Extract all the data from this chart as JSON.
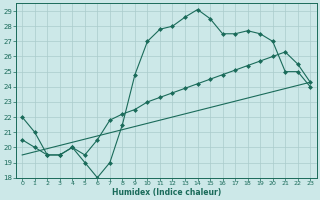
{
  "xlabel": "Humidex (Indice chaleur)",
  "bg_color": "#cce8e8",
  "grid_color": "#aacccc",
  "line_color": "#1a6b5a",
  "xlim": [
    -0.5,
    23.5
  ],
  "ylim": [
    18,
    29.5
  ],
  "yticks": [
    18,
    19,
    20,
    21,
    22,
    23,
    24,
    25,
    26,
    27,
    28,
    29
  ],
  "xticks": [
    0,
    1,
    2,
    3,
    4,
    5,
    6,
    7,
    8,
    9,
    10,
    11,
    12,
    13,
    14,
    15,
    16,
    17,
    18,
    19,
    20,
    21,
    22,
    23
  ],
  "line1_x": [
    0,
    1,
    2,
    3,
    4,
    5,
    6,
    7,
    8,
    9,
    10,
    11,
    12,
    13,
    14,
    15,
    16,
    17,
    18,
    19,
    20,
    21,
    22,
    23
  ],
  "line1_y": [
    22.0,
    21.0,
    19.5,
    19.5,
    20.0,
    19.0,
    18.0,
    19.0,
    21.5,
    24.8,
    27.0,
    27.8,
    28.0,
    28.6,
    29.1,
    28.5,
    27.5,
    27.5,
    27.7,
    27.5,
    27.0,
    25.0,
    25.0,
    24.0
  ],
  "line2_x": [
    0,
    1,
    2,
    3,
    4,
    5,
    6,
    7,
    8,
    9,
    10,
    11,
    12,
    13,
    14,
    15,
    16,
    17,
    18,
    19,
    20,
    21,
    22,
    23
  ],
  "line2_y": [
    20.5,
    20.0,
    19.5,
    19.5,
    20.0,
    19.5,
    20.5,
    21.8,
    22.2,
    22.5,
    23.0,
    23.3,
    23.6,
    23.9,
    24.2,
    24.5,
    24.8,
    25.1,
    25.4,
    25.7,
    26.0,
    26.3,
    25.5,
    24.3
  ],
  "line3_x": [
    0,
    23
  ],
  "line3_y": [
    19.5,
    24.3
  ]
}
